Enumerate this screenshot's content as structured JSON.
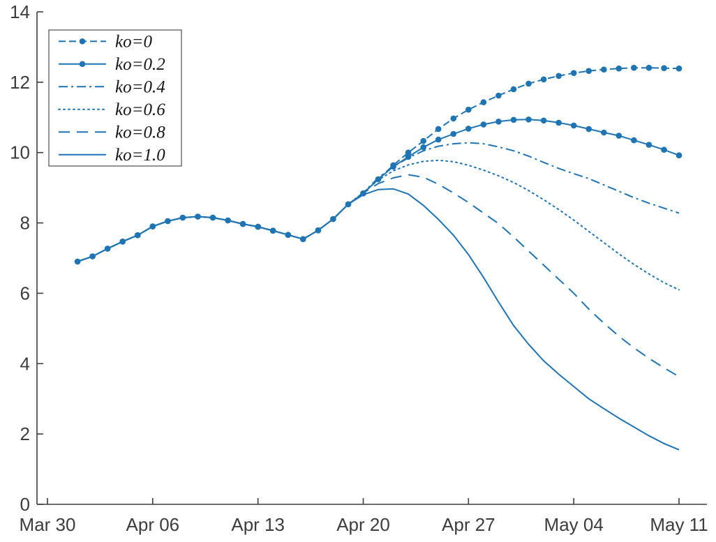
{
  "chart_data": {
    "type": "line",
    "title": "",
    "xlabel": "",
    "ylabel": "",
    "grid": false,
    "legend_position": "top-left",
    "line_color": "#1f74b4",
    "axis_color": "#3d3d3d",
    "background_color": "#ffffff",
    "ylim": [
      0,
      14
    ],
    "y_ticks": [
      0,
      2,
      4,
      6,
      8,
      10,
      12,
      14
    ],
    "x_tick_labels": [
      "Mar 30",
      "Apr 06",
      "Apr 13",
      "Apr 20",
      "Apr 27",
      "May 04",
      "May 11"
    ],
    "x_tick_days": [
      0,
      7,
      14,
      21,
      28,
      35,
      42
    ],
    "x_start_day": 2,
    "x_end_day": 42,
    "series": [
      {
        "name": "ko=0",
        "line_style": "dashed-marker",
        "dash": "10,5",
        "markers": true,
        "values": [
          6.9,
          7.05,
          7.27,
          7.47,
          7.65,
          7.9,
          8.05,
          8.15,
          8.18,
          8.15,
          8.07,
          7.97,
          7.89,
          7.78,
          7.66,
          7.54,
          7.79,
          8.11,
          8.53,
          8.84,
          9.24,
          9.64,
          10.0,
          10.33,
          10.67,
          10.97,
          11.22,
          11.43,
          11.62,
          11.8,
          11.96,
          12.08,
          12.18,
          12.26,
          12.32,
          12.36,
          12.39,
          12.41,
          12.41,
          12.4,
          12.39
        ]
      },
      {
        "name": "ko=0.2",
        "line_style": "solid-marker",
        "dash": "",
        "markers": true,
        "values": [
          6.9,
          7.05,
          7.27,
          7.47,
          7.65,
          7.9,
          8.05,
          8.15,
          8.18,
          8.15,
          8.07,
          7.97,
          7.89,
          7.78,
          7.66,
          7.54,
          7.79,
          8.11,
          8.53,
          8.84,
          9.24,
          9.6,
          9.88,
          10.15,
          10.37,
          10.53,
          10.68,
          10.8,
          10.88,
          10.93,
          10.94,
          10.91,
          10.85,
          10.77,
          10.67,
          10.57,
          10.48,
          10.35,
          10.22,
          10.08,
          9.92
        ]
      },
      {
        "name": "ko=0.4",
        "line_style": "dash-dot",
        "dash": "13,5,3,5",
        "markers": false,
        "values": [
          6.9,
          7.05,
          7.27,
          7.47,
          7.65,
          7.9,
          8.05,
          8.15,
          8.18,
          8.15,
          8.07,
          7.97,
          7.89,
          7.78,
          7.66,
          7.54,
          7.79,
          8.11,
          8.53,
          8.86,
          9.28,
          9.6,
          9.85,
          10.05,
          10.18,
          10.25,
          10.28,
          10.25,
          10.16,
          10.05,
          9.9,
          9.72,
          9.55,
          9.4,
          9.26,
          9.08,
          8.9,
          8.72,
          8.56,
          8.42,
          8.28
        ]
      },
      {
        "name": "ko=0.6",
        "line_style": "dotted",
        "dash": "2,5",
        "markers": false,
        "values": [
          6.9,
          7.05,
          7.27,
          7.47,
          7.65,
          7.9,
          8.05,
          8.15,
          8.18,
          8.15,
          8.07,
          7.97,
          7.89,
          7.78,
          7.66,
          7.54,
          7.79,
          8.11,
          8.53,
          8.86,
          9.22,
          9.48,
          9.65,
          9.75,
          9.78,
          9.74,
          9.64,
          9.5,
          9.34,
          9.15,
          8.92,
          8.66,
          8.38,
          8.08,
          7.76,
          7.44,
          7.12,
          6.82,
          6.55,
          6.3,
          6.1
        ]
      },
      {
        "name": "ko=0.8",
        "line_style": "long-dash",
        "dash": "16,10",
        "markers": false,
        "values": [
          6.9,
          7.05,
          7.27,
          7.47,
          7.65,
          7.9,
          8.05,
          8.15,
          8.18,
          8.15,
          8.07,
          7.97,
          7.89,
          7.78,
          7.66,
          7.54,
          7.79,
          8.11,
          8.53,
          8.85,
          9.12,
          9.28,
          9.37,
          9.3,
          9.1,
          8.85,
          8.58,
          8.28,
          7.98,
          7.6,
          7.2,
          6.8,
          6.4,
          6.0,
          5.55,
          5.15,
          4.78,
          4.45,
          4.15,
          3.88,
          3.63
        ]
      },
      {
        "name": "ko=1.0",
        "line_style": "solid",
        "dash": "",
        "markers": false,
        "values": [
          6.9,
          7.05,
          7.27,
          7.47,
          7.65,
          7.9,
          8.05,
          8.15,
          8.18,
          8.15,
          8.07,
          7.97,
          7.89,
          7.78,
          7.66,
          7.54,
          7.79,
          8.11,
          8.53,
          8.8,
          8.95,
          8.97,
          8.82,
          8.5,
          8.1,
          7.65,
          7.1,
          6.45,
          5.75,
          5.08,
          4.55,
          4.08,
          3.7,
          3.35,
          3.0,
          2.72,
          2.45,
          2.2,
          1.95,
          1.73,
          1.55
        ]
      }
    ]
  }
}
